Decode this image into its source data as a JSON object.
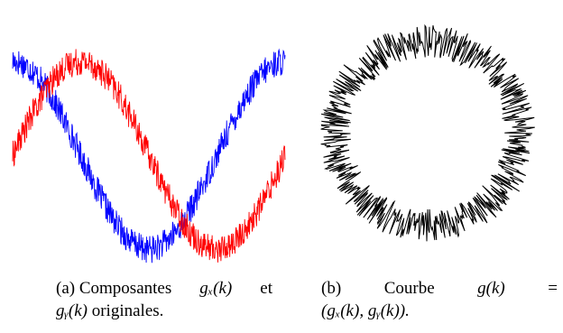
{
  "figure": {
    "panel_a": {
      "caption_tag": "(a)",
      "caption_text1": "Composantes",
      "caption_math1": "gₓ(k)",
      "caption_text2": "et",
      "caption_math2": "gᵧ(k)",
      "caption_text3": "originales."
    },
    "panel_b": {
      "caption_tag": "(b)",
      "caption_text1": "Courbe",
      "caption_math1": "g(k)",
      "caption_eq": "=",
      "caption_math2": "(gₓ(k), gᵧ(k))."
    }
  },
  "chart_data": [
    {
      "type": "line",
      "title": "",
      "xlabel": "",
      "ylabel": "",
      "grid": false,
      "axes_visible": false,
      "x_range": [
        0,
        1
      ],
      "y_range": [
        -1.1,
        1.1
      ],
      "series": [
        {
          "color": "#0000ff",
          "function": "cosine",
          "periods": 1,
          "phase_deg": 0,
          "amplitude": 1.0,
          "noise_amplitude": 0.15
        },
        {
          "color": "#ff0000",
          "function": "sine",
          "periods": 1,
          "phase_deg": 0,
          "amplitude": 1.0,
          "noise_amplitude": 0.15
        }
      ]
    },
    {
      "type": "line",
      "title": "",
      "xlabel": "",
      "ylabel": "",
      "grid": false,
      "axes_visible": false,
      "series": [
        {
          "color": "#000000",
          "shape": "noisy-circle",
          "radius": 1.0,
          "noise_amplitude": 0.18
        }
      ]
    }
  ]
}
